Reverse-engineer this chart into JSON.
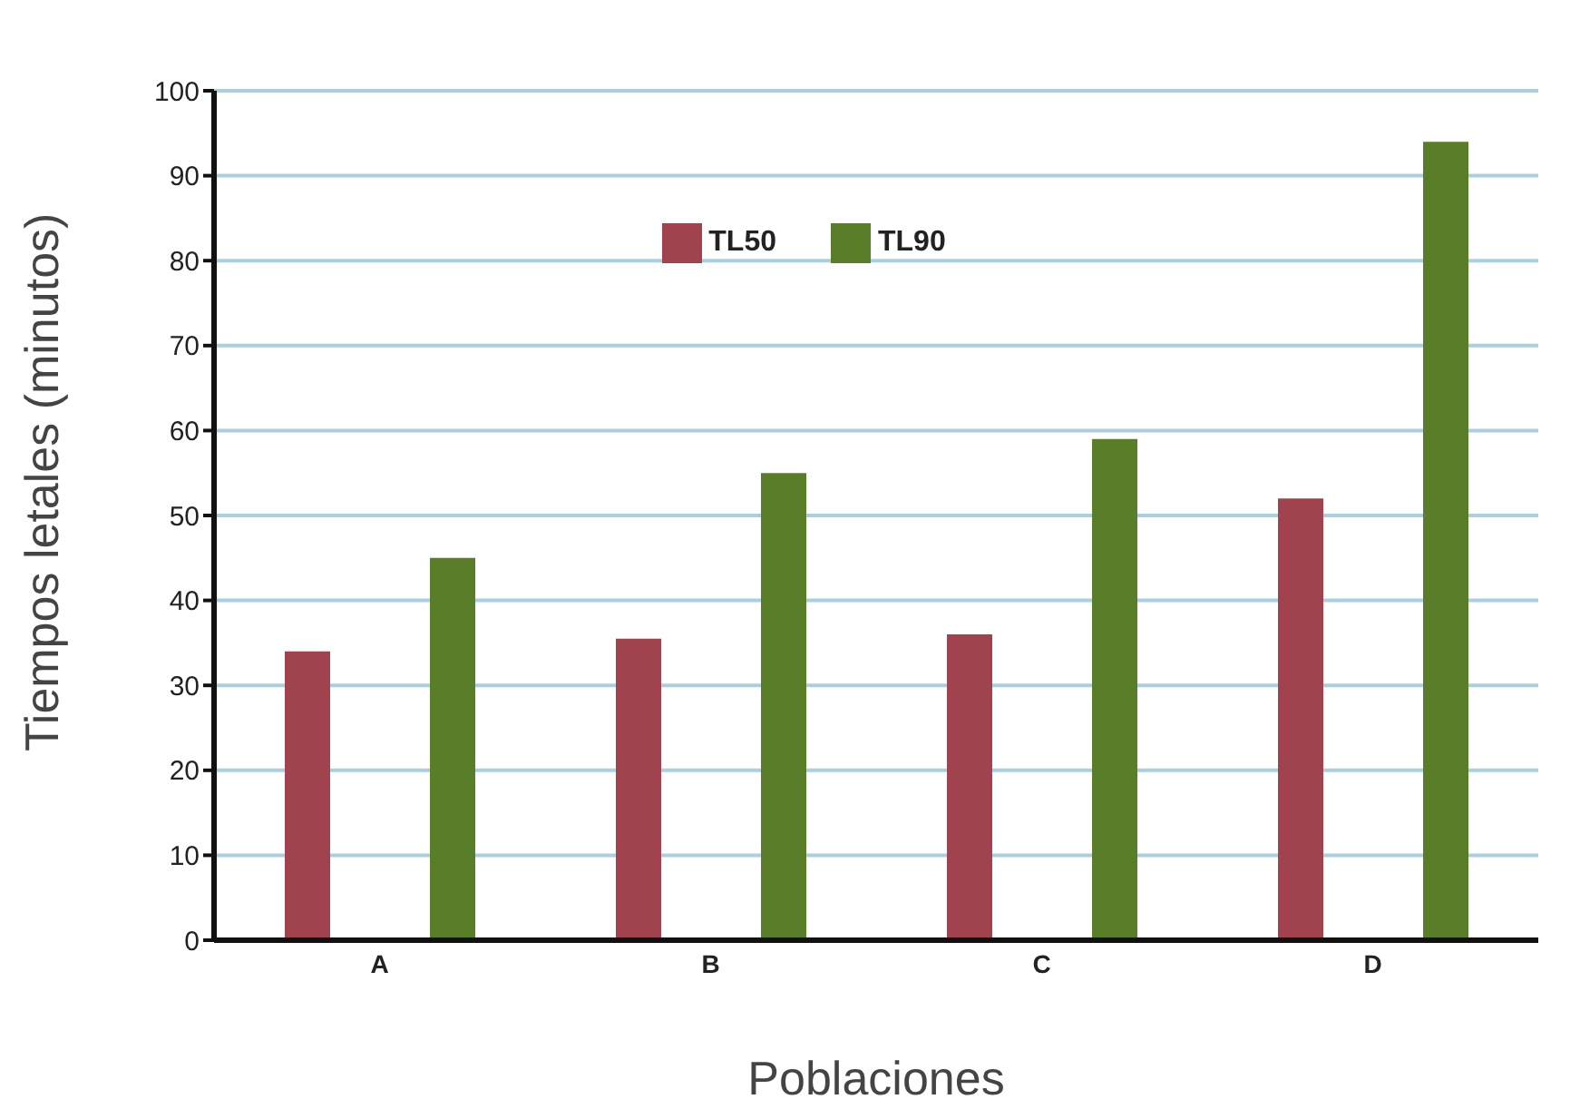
{
  "chart_data": {
    "type": "bar",
    "xlabel": "Poblaciones",
    "ylabel": "Tiempos letales (minutos)",
    "categories": [
      "A",
      "B",
      "C",
      "D"
    ],
    "series": [
      {
        "name": "TL50",
        "color": "#a0434e",
        "values": [
          34,
          35.5,
          36,
          52
        ]
      },
      {
        "name": "TL90",
        "color": "#5a7d2a",
        "values": [
          45,
          55,
          59,
          94
        ]
      }
    ],
    "ylim": [
      0,
      100
    ],
    "yticks": [
      0,
      10,
      20,
      30,
      40,
      50,
      60,
      70,
      80,
      90,
      100
    ],
    "grid": "y",
    "legend": "top"
  }
}
